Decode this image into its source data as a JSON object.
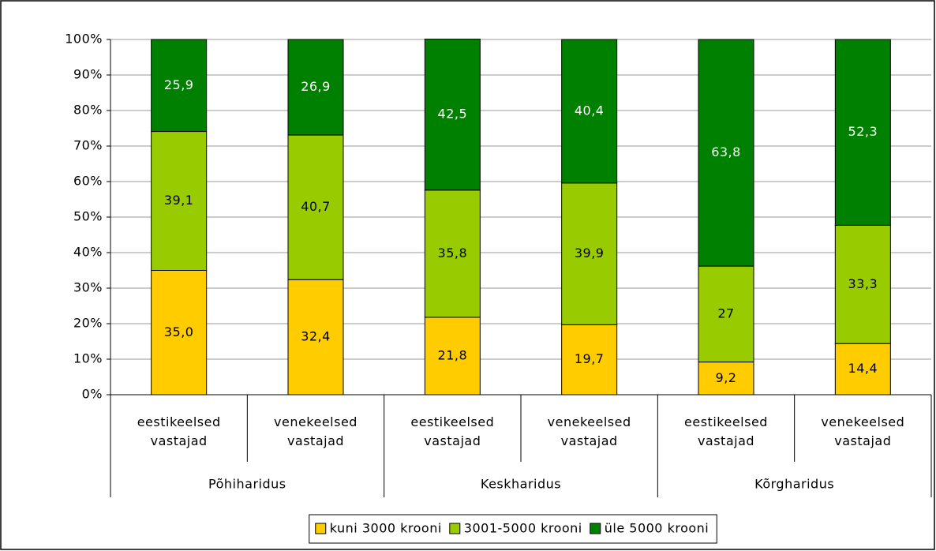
{
  "chart_data": {
    "type": "stacked_bar",
    "categories": [
      "eestikeelsed vastajad",
      "venekeelsed vastajad",
      "eestikeelsed vastajad",
      "venekeelsed vastajad",
      "eestikeelsed vastajad",
      "venekeelsed vastajad"
    ],
    "groups": [
      "Põhiharidus",
      "Keskharidus",
      "Kõrgharidus"
    ],
    "series": [
      {
        "name": "kuni 3000 krooni",
        "color": "#ffcc00",
        "values": [
          35.0,
          32.4,
          21.8,
          19.7,
          9.2,
          14.4
        ],
        "value_labels": [
          "35,0",
          "32,4",
          "21,8",
          "19,7",
          "9,2",
          "14,4"
        ]
      },
      {
        "name": "3001-5000 krooni",
        "color": "#99cc00",
        "values": [
          39.1,
          40.7,
          35.8,
          39.9,
          27,
          33.3
        ],
        "value_labels": [
          "39,1",
          "40,7",
          "35,8",
          "39,9",
          "27",
          "33,3"
        ]
      },
      {
        "name": "üle 5000 krooni",
        "color": "#008000",
        "values": [
          25.9,
          26.9,
          42.5,
          40.4,
          63.8,
          52.3
        ],
        "value_labels": [
          "25,9",
          "26,9",
          "42,5",
          "40,4",
          "63,8",
          "52,3"
        ]
      }
    ],
    "ylim": [
      0,
      100
    ],
    "yticks": [
      {
        "value": 0,
        "label": "0%"
      },
      {
        "value": 10,
        "label": "10%"
      },
      {
        "value": 20,
        "label": "20%"
      },
      {
        "value": 30,
        "label": "30%"
      },
      {
        "value": 40,
        "label": "40%"
      },
      {
        "value": 50,
        "label": "50%"
      },
      {
        "value": 60,
        "label": "60%"
      },
      {
        "value": 70,
        "label": "70%"
      },
      {
        "value": 80,
        "label": "80%"
      },
      {
        "value": 90,
        "label": "90%"
      },
      {
        "value": 100,
        "label": "100%"
      }
    ],
    "grid": true,
    "legend": "bottom"
  }
}
